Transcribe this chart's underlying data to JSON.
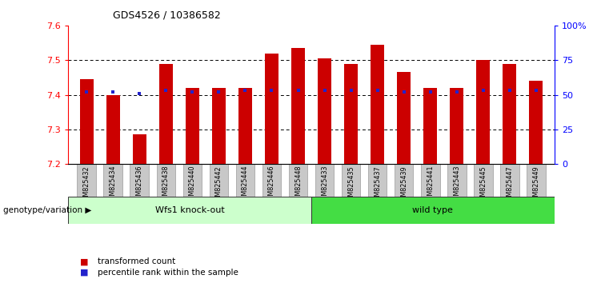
{
  "title": "GDS4526 / 10386582",
  "samples": [
    "GSM825432",
    "GSM825434",
    "GSM825436",
    "GSM825438",
    "GSM825440",
    "GSM825442",
    "GSM825444",
    "GSM825446",
    "GSM825448",
    "GSM825433",
    "GSM825435",
    "GSM825437",
    "GSM825439",
    "GSM825441",
    "GSM825443",
    "GSM825445",
    "GSM825447",
    "GSM825449"
  ],
  "transformed_counts": [
    7.445,
    7.4,
    7.285,
    7.49,
    7.42,
    7.42,
    7.42,
    7.52,
    7.535,
    7.505,
    7.49,
    7.545,
    7.465,
    7.42,
    7.42,
    7.5,
    7.49,
    7.44
  ],
  "percentile_ranks": [
    52,
    52,
    51,
    53,
    52,
    52,
    53,
    53,
    53,
    53,
    53,
    53,
    52,
    52,
    52,
    53,
    53,
    53
  ],
  "group_labels": [
    "Wfs1 knock-out",
    "wild type"
  ],
  "group_colors": [
    "#CCFFCC",
    "#44DD44"
  ],
  "ylim": [
    7.2,
    7.6
  ],
  "yticks_left": [
    7.2,
    7.3,
    7.4,
    7.5,
    7.6
  ],
  "yticks_right": [
    0,
    25,
    50,
    75,
    100
  ],
  "right_ylabels": [
    "0",
    "25",
    "50",
    "75",
    "100%"
  ],
  "bar_color": "#CC0000",
  "dot_color": "#2222CC",
  "bar_width": 0.5,
  "separator_index": 9,
  "genotype_label": "genotype/variation",
  "legend_labels": [
    "transformed count",
    "percentile rank within the sample"
  ],
  "tick_bg_color": "#C8C8C8",
  "tick_border_color": "#888888"
}
